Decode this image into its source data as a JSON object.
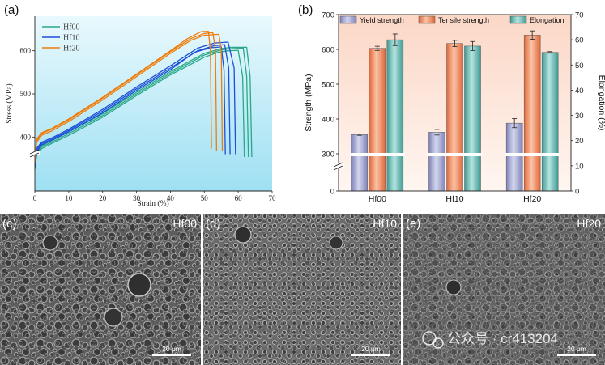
{
  "chart_data": [
    {
      "panel": "(a)",
      "type": "line",
      "xlabel": "Strain (%)",
      "ylabel": "Stress (MPa)",
      "xlim": [
        0,
        70
      ],
      "ylim": [
        300,
        680
      ],
      "xticks": [
        "0",
        "10",
        "20",
        "30",
        "40",
        "50",
        "60",
        "70"
      ],
      "yticks": [
        "400",
        "500",
        "600"
      ],
      "legend_position": "top-left",
      "series": [
        {
          "name": "Hf00",
          "color": "#2aa887",
          "curves": [
            {
              "x": [
                0,
                0.5,
                2,
                5,
                10,
                20,
                30,
                40,
                50,
                55,
                58,
                61.5,
                62.5,
                63
              ],
              "y": [
                340,
                365,
                378,
                388,
                408,
                450,
                500,
                548,
                590,
                602,
                605,
                606,
                540,
                360
              ]
            },
            {
              "x": [
                0,
                0.5,
                2,
                5,
                10,
                20,
                30,
                40,
                50,
                55,
                58,
                62.5,
                63.5,
                64
              ],
              "y": [
                345,
                368,
                380,
                392,
                412,
                454,
                504,
                552,
                594,
                605,
                608,
                608,
                540,
                360
              ]
            },
            {
              "x": [
                0,
                0.5,
                2,
                5,
                10,
                20,
                30,
                40,
                50,
                54,
                57,
                60,
                61.3,
                61.8
              ],
              "y": [
                338,
                362,
                375,
                385,
                404,
                446,
                496,
                544,
                585,
                596,
                600,
                601,
                540,
                360
              ]
            }
          ]
        },
        {
          "name": "Hf10",
          "color": "#1c4fd6",
          "curves": [
            {
              "x": [
                0,
                0.5,
                2,
                5,
                10,
                20,
                30,
                40,
                48,
                53,
                56,
                57.2,
                57.6
              ],
              "y": [
                345,
                372,
                385,
                395,
                415,
                460,
                512,
                560,
                600,
                612,
                614,
                560,
                365
              ]
            },
            {
              "x": [
                0,
                0.5,
                2,
                5,
                10,
                20,
                30,
                40,
                48,
                53,
                57,
                58.8,
                59.2
              ],
              "y": [
                350,
                375,
                388,
                398,
                418,
                464,
                516,
                565,
                606,
                618,
                620,
                560,
                365
              ]
            },
            {
              "x": [
                0,
                0.5,
                2,
                5,
                10,
                20,
                30,
                40,
                47,
                52,
                55,
                55.8,
                56.2
              ],
              "y": [
                342,
                368,
                382,
                392,
                412,
                456,
                508,
                556,
                596,
                607,
                609,
                555,
                365
              ]
            }
          ]
        },
        {
          "name": "Hf20",
          "color": "#f07c0a",
          "curves": [
            {
              "x": [
                0,
                0.5,
                2,
                5,
                10,
                20,
                30,
                40,
                46,
                50,
                52.5,
                53.3,
                53.6
              ],
              "y": [
                350,
                392,
                408,
                418,
                440,
                490,
                544,
                598,
                628,
                640,
                642,
                600,
                370
              ]
            },
            {
              "x": [
                0,
                0.5,
                2,
                5,
                10,
                20,
                30,
                40,
                46,
                50,
                54.3,
                55,
                55.3
              ],
              "y": [
                348,
                388,
                404,
                414,
                436,
                486,
                540,
                594,
                624,
                636,
                638,
                600,
                370
              ]
            },
            {
              "x": [
                0,
                0.5,
                2,
                5,
                10,
                20,
                30,
                40,
                45,
                49,
                51.2,
                51.8,
                52.1
              ],
              "y": [
                352,
                395,
                410,
                420,
                442,
                492,
                546,
                600,
                628,
                644,
                645,
                600,
                375
              ]
            }
          ]
        }
      ]
    },
    {
      "panel": "(b)",
      "type": "bar",
      "categories": [
        "Hf00",
        "Hf10",
        "Hf20"
      ],
      "ylabel": "Strength (MPa)",
      "y2label": "Elongation (%)",
      "ylim": [
        0,
        700
      ],
      "y2lim": [
        0,
        70
      ],
      "yticks": [
        "0",
        "300",
        "400",
        "500",
        "600",
        "700"
      ],
      "y2ticks": [
        "0",
        "10",
        "20",
        "30",
        "40",
        "50",
        "60",
        "70"
      ],
      "legend_position": "top",
      "series": [
        {
          "name": "Yield strength",
          "axis": "left",
          "color": "#9ea3cf",
          "values": [
            355,
            362,
            388
          ],
          "errors": [
            2,
            8,
            13
          ]
        },
        {
          "name": "Tensile strength",
          "axis": "left",
          "color": "#ef8f62",
          "values": [
            603,
            617,
            641
          ],
          "errors": [
            6,
            9,
            12
          ]
        },
        {
          "name": "Elongation",
          "axis": "right",
          "color": "#5fb2ad",
          "values": [
            60,
            57.5,
            55
          ],
          "errors": [
            2.3,
            1.8,
            0.3
          ]
        }
      ]
    }
  ],
  "labels": {
    "panel_a": "(a)",
    "panel_b": "(b)",
    "panel_c": "(c)",
    "panel_d": "(d)",
    "panel_e": "(e)"
  },
  "micrographs": [
    {
      "tag": "Hf00",
      "scale_bar": "20  μm"
    },
    {
      "tag": "Hf10",
      "scale_bar": "20  μm"
    },
    {
      "tag": "Hf20",
      "scale_bar": "20  μm"
    }
  ],
  "watermark": "公众号 · cr413204"
}
